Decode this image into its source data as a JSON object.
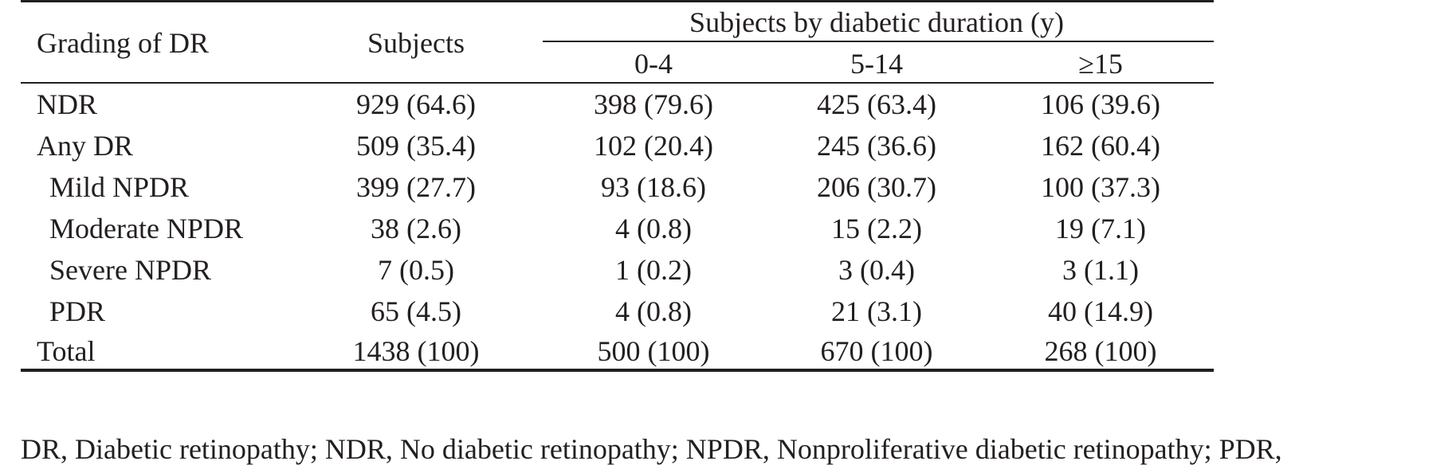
{
  "table": {
    "header": {
      "grading_label": "Grading of DR",
      "subjects_label": "Subjects",
      "duration_group_label": "Subjects by diabetic duration (y)",
      "duration_columns": [
        "0-4",
        "5-14",
        "≥15"
      ]
    },
    "rows": [
      {
        "label": "NDR",
        "indent": false,
        "subjects": "929 (64.6)",
        "d0_4": "398 (79.6)",
        "d5_14": "425 (63.4)",
        "d15": "106 (39.6)"
      },
      {
        "label": "Any DR",
        "indent": false,
        "subjects": "509 (35.4)",
        "d0_4": "102 (20.4)",
        "d5_14": "245 (36.6)",
        "d15": "162 (60.4)"
      },
      {
        "label": "Mild NPDR",
        "indent": true,
        "subjects": "399 (27.7)",
        "d0_4": "93 (18.6)",
        "d5_14": "206 (30.7)",
        "d15": "100 (37.3)"
      },
      {
        "label": "Moderate NPDR",
        "indent": true,
        "subjects": "38 (2.6)",
        "d0_4": "4 (0.8)",
        "d5_14": "15 (2.2)",
        "d15": "19 (7.1)"
      },
      {
        "label": "Severe NPDR",
        "indent": true,
        "subjects": "7 (0.5)",
        "d0_4": "1 (0.2)",
        "d5_14": "3 (0.4)",
        "d15": "3 (1.1)"
      },
      {
        "label": "PDR",
        "indent": true,
        "subjects": "65 (4.5)",
        "d0_4": "4 (0.8)",
        "d5_14": "21 (3.1)",
        "d15": "40 (14.9)"
      },
      {
        "label": "Total",
        "indent": false,
        "subjects": "1438 (100)",
        "d0_4": "500 (100)",
        "d5_14": "670 (100)",
        "d15": "268 (100)"
      }
    ],
    "footnote": "DR, Diabetic retinopathy; NDR, No diabetic retinopathy; NPDR, Nonproliferative diabetic retinopathy; PDR,"
  }
}
